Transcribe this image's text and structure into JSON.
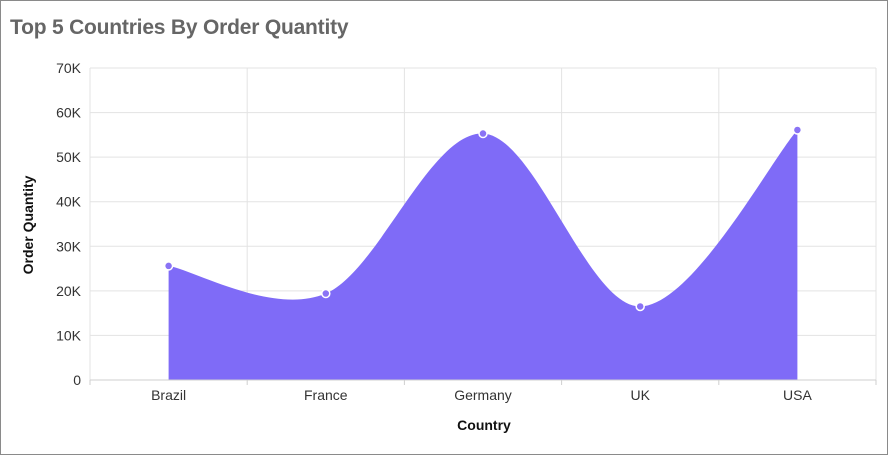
{
  "chart_data": {
    "type": "area",
    "title": "Top 5 Countries By Order Quantity",
    "xlabel": "Country",
    "ylabel": "Order Quantity",
    "categories": [
      "Brazil",
      "France",
      "Germany",
      "UK",
      "USA"
    ],
    "series": [
      {
        "values": [
          25600,
          19400,
          55300,
          16500,
          56100
        ]
      }
    ],
    "ylim": [
      0,
      70000
    ],
    "yticks": [
      0,
      10000,
      20000,
      30000,
      40000,
      50000,
      60000,
      70000
    ],
    "ytick_labels": [
      "0",
      "10K",
      "20K",
      "30K",
      "40K",
      "50K",
      "60K",
      "70K"
    ],
    "grid": true,
    "legend": "none",
    "colors": {
      "area": "#7f6bf7",
      "marker": "#8a73f5",
      "title": "#666666",
      "grid": "#e3e3e3"
    }
  }
}
